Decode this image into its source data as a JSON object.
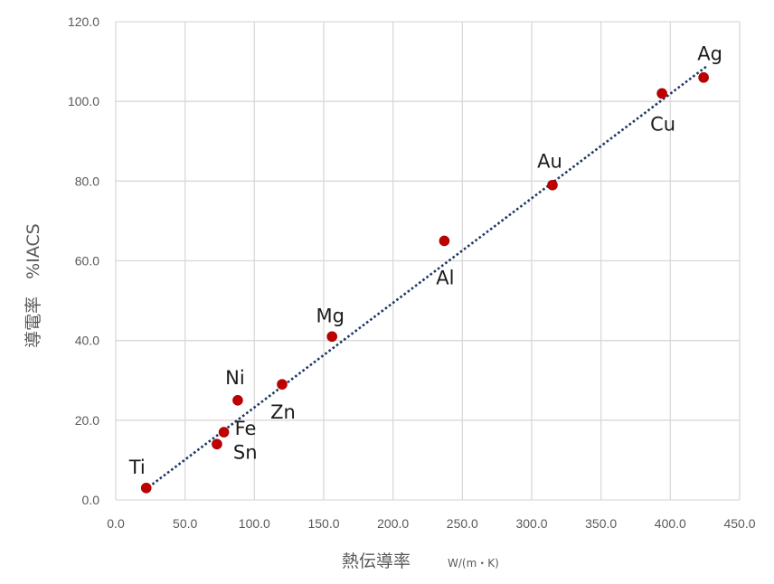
{
  "chart_data": {
    "type": "scatter",
    "title": "",
    "xlabel": "熱伝導率",
    "xunit": "W/(m・K)",
    "ylabel": "導電率　%IACS",
    "xlim": [
      0,
      450
    ],
    "ylim": [
      0,
      120
    ],
    "xticks": [
      "0.0",
      "50.0",
      "100.0",
      "150.0",
      "200.0",
      "250.0",
      "300.0",
      "350.0",
      "400.0",
      "450.0"
    ],
    "yticks": [
      "0.0",
      "20.0",
      "40.0",
      "60.0",
      "80.0",
      "100.0",
      "120.0"
    ],
    "grid": true,
    "point_color": "#c00000",
    "trendline": {
      "type": "linear",
      "style": "dotted",
      "color": "#203864",
      "x": [
        21,
        427
      ],
      "y": [
        2.5,
        109
      ]
    },
    "points": [
      {
        "label": "Ti",
        "x": 22,
        "y": 3
      },
      {
        "label": "Sn",
        "x": 73,
        "y": 14
      },
      {
        "label": "Fe",
        "x": 78,
        "y": 17
      },
      {
        "label": "Ni",
        "x": 88,
        "y": 25
      },
      {
        "label": "Zn",
        "x": 120,
        "y": 29
      },
      {
        "label": "Mg",
        "x": 156,
        "y": 41
      },
      {
        "label": "Al",
        "x": 237,
        "y": 65
      },
      {
        "label": "Au",
        "x": 315,
        "y": 79
      },
      {
        "label": "Cu",
        "x": 394,
        "y": 102
      },
      {
        "label": "Ag",
        "x": 424,
        "y": 106
      }
    ]
  }
}
